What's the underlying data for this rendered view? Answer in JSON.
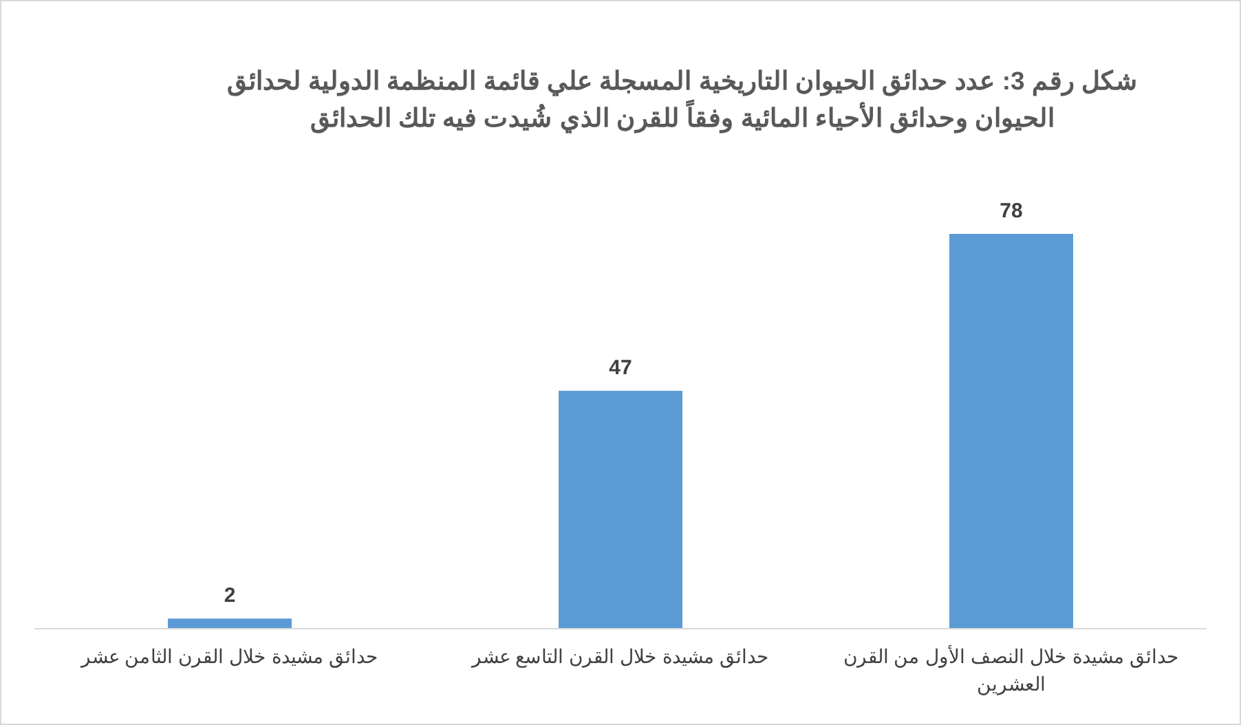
{
  "chart_data": {
    "type": "bar",
    "title": "شكل رقم 3: عدد حدائق الحيوان التاريخية المسجلة علي قائمة المنظمة الدولية لحدائق الحيوان وحدائق الأحياء المائية وفقاً للقرن الذي شُيدت فيه تلك الحدائق",
    "categories": [
      "حدائق مشيدة خلال القرن الثامن عشر",
      "حدائق مشيدة خلال القرن التاسع عشر",
      "حدائق مشيدة خلال النصف الأول من القرن العشرين"
    ],
    "values": [
      2,
      47,
      78
    ],
    "color": "#5b9bd5",
    "data_labels": true
  }
}
